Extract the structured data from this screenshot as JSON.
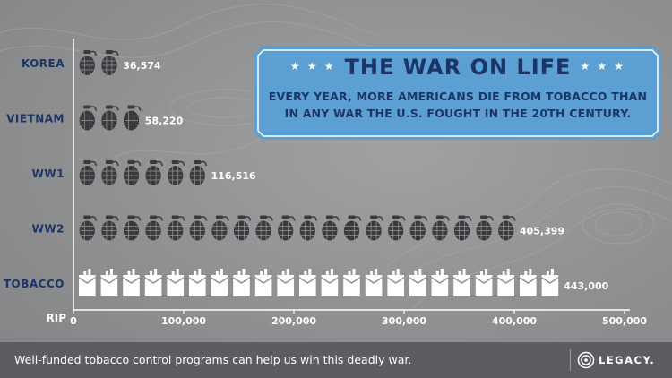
{
  "banner": {
    "title": "THE WAR ON LIFE",
    "stars": "★ ★ ★",
    "subtitle_line1": "EVERY YEAR, MORE AMERICANS DIE FROM TOBACCO THAN",
    "subtitle_line2": "IN ANY WAR THE U.S. FOUGHT IN THE 20TH CENTURY."
  },
  "footer": {
    "text": "Well-funded tobacco control programs can help us win this deadly war.",
    "logo_text": "LEGACY."
  },
  "chart_data": {
    "type": "bar",
    "style": "pictogram",
    "categories": [
      "KOREA",
      "VIETNAM",
      "WW1",
      "WW2",
      "TOBACCO"
    ],
    "values": [
      36574,
      58220,
      116516,
      405399,
      443000
    ],
    "value_labels": [
      "36,574",
      "58,220",
      "116,516",
      "405,399",
      "443,000"
    ],
    "icons": [
      "grenade-icon",
      "grenade-icon",
      "grenade-icon",
      "grenade-icon",
      "cigarette-pack-icon"
    ],
    "units_per_icon": 20000,
    "xlabel": "RIP",
    "ylabel": "",
    "title": "",
    "xlim": [
      0,
      500000
    ],
    "xticks": [
      0,
      100000,
      200000,
      300000,
      400000,
      500000
    ],
    "xtick_labels": [
      "0",
      "100,000",
      "200,000",
      "300,000",
      "400,000",
      "500,000"
    ],
    "grid": false,
    "colors": {
      "icon": "#3a3a3c",
      "pack": "#ffffff",
      "category_label": "#1c3566",
      "banner": "#5b9fd3"
    }
  }
}
